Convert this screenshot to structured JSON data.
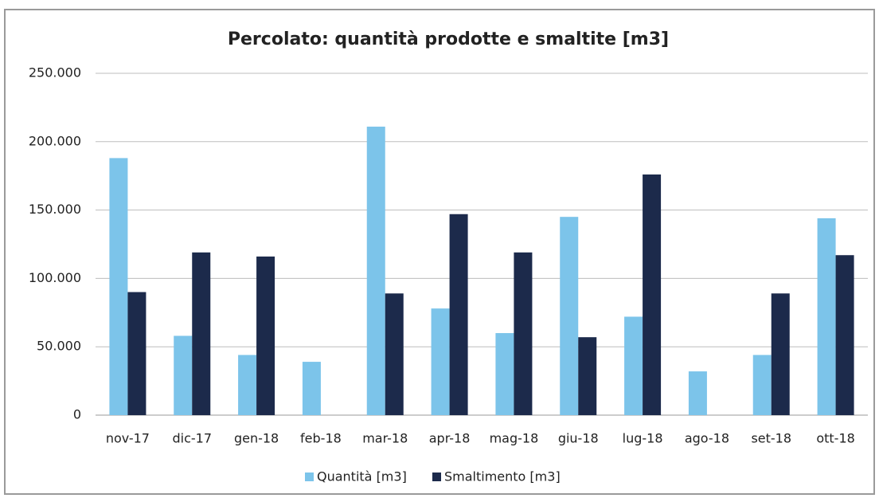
{
  "chart_data": {
    "type": "bar",
    "title": "Percolato: quantità prodotte e smaltite [m3]",
    "categories": [
      "nov-17",
      "dic-17",
      "gen-18",
      "feb-18",
      "mar-18",
      "apr-18",
      "mag-18",
      "giu-18",
      "lug-18",
      "ago-18",
      "set-18",
      "ott-18"
    ],
    "series": [
      {
        "name": "Quantità [m3]",
        "color": "#7cc4ea",
        "values": [
          188000,
          58000,
          44000,
          39000,
          211000,
          78000,
          60000,
          145000,
          72000,
          32000,
          44000,
          144000
        ]
      },
      {
        "name": "Smaltimento [m3]",
        "color": "#1c2a4b",
        "values": [
          90000,
          119000,
          116000,
          0,
          89000,
          147000,
          119000,
          57000,
          176000,
          0,
          89000,
          117000
        ]
      }
    ],
    "ylim": [
      0,
      250000
    ],
    "yticks": [
      0,
      {
        "value": 50000,
        "label": "50.000"
      },
      {
        "value": 100000,
        "label": "100.000"
      },
      {
        "value": 150000,
        "label": "150.000"
      },
      {
        "value": 200000,
        "label": "200.000"
      },
      {
        "value": 250000,
        "label": "250.000"
      }
    ],
    "grid": true,
    "legend": "bottom"
  }
}
